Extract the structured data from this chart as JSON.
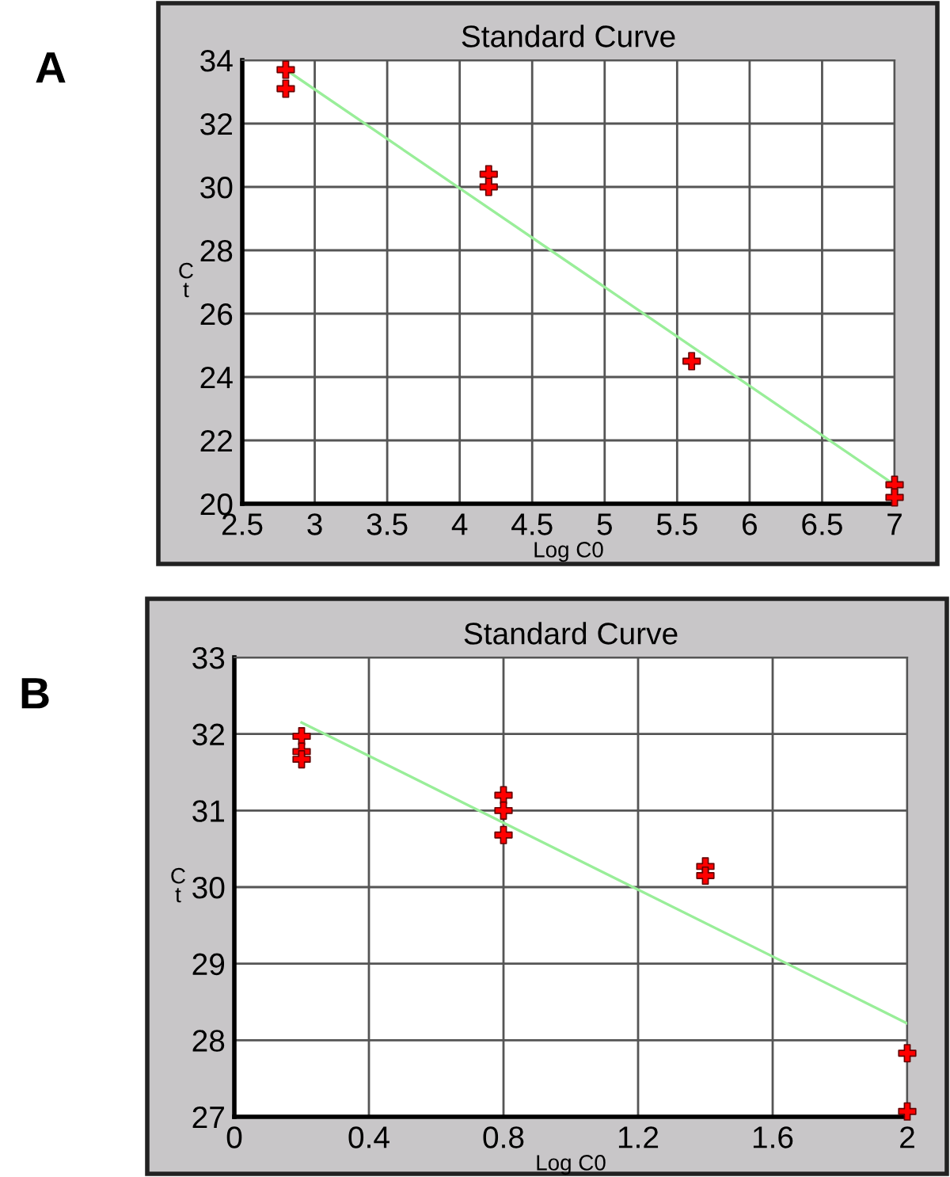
{
  "chart_data": [
    {
      "type": "scatter",
      "title": "Standard Curve",
      "xlabel": "Log C0",
      "ylabel": "C\nt",
      "annotations": [
        "A"
      ],
      "xlim": [
        2.5,
        7
      ],
      "xticks": [
        2.5,
        3,
        3.5,
        4,
        4.5,
        5,
        5.5,
        6,
        6.5,
        7
      ],
      "ylim": [
        20,
        34
      ],
      "yticks": [
        20,
        22,
        24,
        26,
        28,
        30,
        32,
        34
      ],
      "grid": true,
      "series": [
        {
          "type": "scatter",
          "color": "#ff0000",
          "marker": "cross",
          "x": [
            2.8,
            2.8,
            4.2,
            4.2,
            5.6,
            7,
            7
          ],
          "values": [
            33.7,
            33.1,
            30.4,
            30.0,
            24.5,
            20.6,
            20.2
          ]
        },
        {
          "type": "line",
          "color": "#99ee99",
          "marker": "none",
          "x": [
            2.8,
            7
          ],
          "values": [
            33.7,
            20.6
          ]
        }
      ]
    },
    {
      "type": "scatter",
      "title": "Standard Curve",
      "xlabel": "Log C0",
      "ylabel": "C\nt",
      "annotations": [
        "B"
      ],
      "xlim": [
        0,
        2
      ],
      "xticks": [
        0,
        0.4,
        0.8,
        1.2,
        1.6,
        2
      ],
      "ylim": [
        27,
        33
      ],
      "yticks": [
        27,
        28,
        29,
        30,
        31,
        32,
        33
      ],
      "grid": true,
      "series": [
        {
          "type": "scatter",
          "color": "#ff0000",
          "marker": "cross",
          "x": [
            0.2,
            0.2,
            0.2,
            0.8,
            0.8,
            0.8,
            1.4,
            1.4,
            2,
            2
          ],
          "values": [
            31.97,
            31.77,
            31.67,
            31.2,
            31.0,
            30.68,
            30.27,
            30.15,
            27.83,
            27.07
          ]
        },
        {
          "type": "line",
          "color": "#99ee99",
          "marker": "none",
          "x": [
            0.2,
            2
          ],
          "values": [
            32.15,
            28.22
          ]
        }
      ]
    }
  ]
}
